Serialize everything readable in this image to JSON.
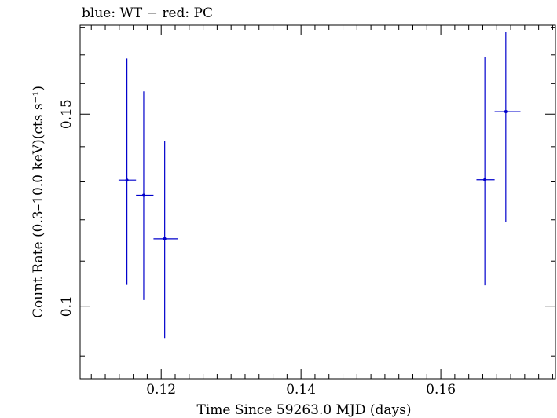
{
  "chart_data": {
    "type": "scatter",
    "title": "blue: WT − red: PC",
    "xlabel": "Time Since 59263.0 MJD (days)",
    "ylabel": "Count Rate (0.3–10.0 keV)(cts s⁻¹)",
    "xlim": [
      0.1084,
      0.1764
    ],
    "ylim": [
      0.0858,
      0.181
    ],
    "x_scale": "linear",
    "y_scale": "log",
    "x_ticks": [
      0.12,
      0.14,
      0.16
    ],
    "x_tick_labels": [
      "0.12",
      "0.14",
      "0.16"
    ],
    "y_ticks": [
      0.1,
      0.15
    ],
    "y_tick_labels": [
      "0.1",
      "0.15"
    ],
    "grid": false,
    "legend": "none",
    "series": [
      {
        "color": "#0000cc",
        "points": [
          {
            "x": 0.1151,
            "x_low": 0.1139,
            "x_high": 0.1164,
            "y": 0.1305,
            "y_low": 0.1046,
            "y_high": 0.1687
          },
          {
            "x": 0.1175,
            "x_low": 0.1164,
            "x_high": 0.1189,
            "y": 0.1264,
            "y_low": 0.1013,
            "y_high": 0.1574
          },
          {
            "x": 0.1205,
            "x_low": 0.1189,
            "x_high": 0.1224,
            "y": 0.1153,
            "y_low": 0.0935,
            "y_high": 0.1416
          },
          {
            "x": 0.1663,
            "x_low": 0.1651,
            "x_high": 0.1677,
            "y": 0.1306,
            "y_low": 0.1045,
            "y_high": 0.1692
          },
          {
            "x": 0.1693,
            "x_low": 0.1677,
            "x_high": 0.1714,
            "y": 0.1508,
            "y_low": 0.1194,
            "y_high": 0.1783
          }
        ]
      }
    ]
  }
}
